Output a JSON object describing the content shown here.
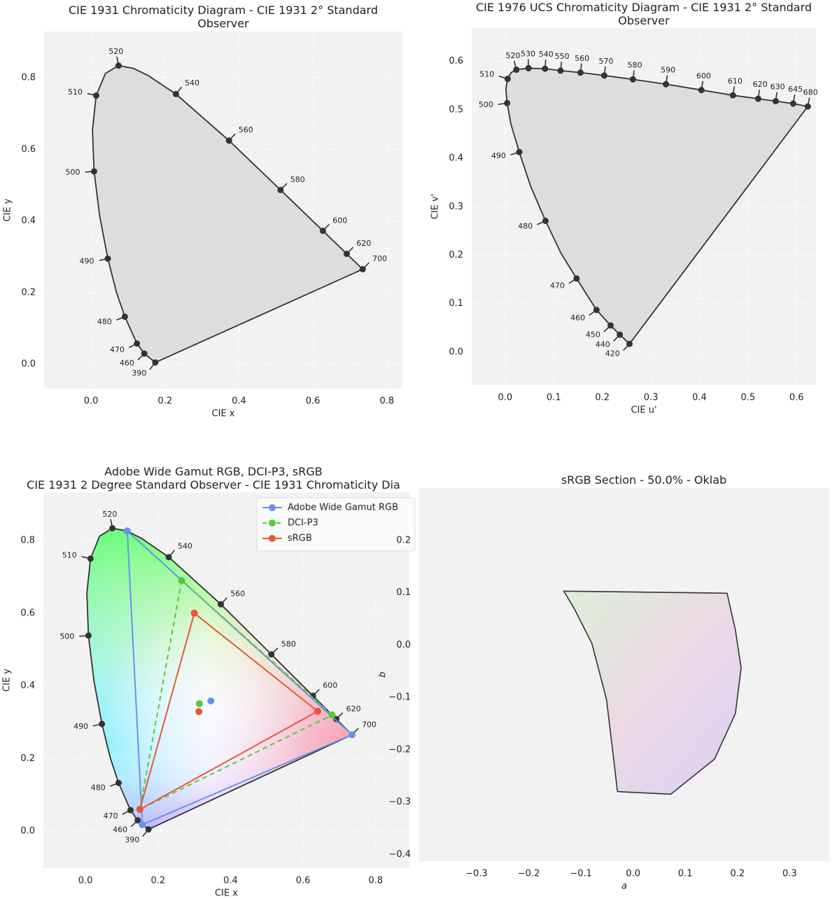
{
  "chart_data": [
    {
      "type": "chromaticity",
      "title": "CIE 1931 Chromaticity Diagram - CIE 1931 2° Standard Observer",
      "xlabel": "CIE x",
      "ylabel": "CIE y",
      "xlim": [
        -0.127,
        0.842
      ],
      "ylim": [
        -0.068,
        0.929
      ],
      "xticks": [
        {
          "value": 0,
          "label": "0.0"
        },
        0.2,
        0.4,
        0.6,
        0.8
      ],
      "yticks": [
        {
          "value": 0,
          "label": "0.0"
        },
        0.2,
        0.4,
        0.6,
        0.8
      ],
      "grid": true,
      "fill": "#d9d9d9",
      "color": "#333333",
      "locus": {
        "x": [
          0.1738,
          0.144,
          0.1241,
          0.0913,
          0.0687,
          0.0454,
          0.0235,
          0.0082,
          0.0039,
          0.0139,
          0.0389,
          0.0743,
          0.1142,
          0.1547,
          0.2296,
          0.3731,
          0.5125,
          0.627,
          0.6915,
          0.7347
        ],
        "y": [
          0.0049,
          0.0297,
          0.0578,
          0.1327,
          0.2007,
          0.295,
          0.4127,
          0.5384,
          0.6548,
          0.7502,
          0.812,
          0.8338,
          0.8262,
          0.8059,
          0.7543,
          0.6245,
          0.4866,
          0.3725,
          0.3083,
          0.2653
        ],
        "labels": [
          "390",
          "460",
          "470",
          "480",
          null,
          "490",
          null,
          "500",
          null,
          "510",
          null,
          "520",
          null,
          null,
          "540",
          "560",
          "580",
          "600",
          "620",
          "700"
        ]
      }
    },
    {
      "type": "chromaticity",
      "title": "CIE 1976 UCS Chromaticity Diagram - CIE 1931 2° Standard Observer",
      "xlabel": "CIE u'",
      "ylabel": "CIE v'",
      "xlim": [
        -0.069,
        0.64
      ],
      "ylim": [
        -0.068,
        0.669
      ],
      "xticks": [
        {
          "value": 0,
          "label": "0.0"
        },
        0.1,
        0.2,
        0.3,
        0.4,
        0.5,
        0.6
      ],
      "yticks": [
        {
          "value": 0,
          "label": "0.0"
        },
        0.1,
        0.2,
        0.3,
        0.4,
        0.5,
        0.6
      ],
      "grid": true,
      "fill": "#d9d9d9",
      "color": "#333333",
      "locus": {
        "x": [
          0.256,
          0.236,
          0.217,
          0.188,
          0.147,
          0.1147,
          0.083,
          0.0521,
          0.029,
          0.0119,
          0.004,
          0.0014,
          0.005,
          0.0123,
          0.023,
          0.048,
          0.082,
          0.114,
          0.155,
          0.204,
          0.263,
          0.331,
          0.404,
          0.469,
          0.521,
          0.557,
          0.593,
          0.623
        ],
        "y": [
          0.017,
          0.036,
          0.055,
          0.087,
          0.152,
          0.2044,
          0.271,
          0.343,
          0.413,
          0.47,
          0.514,
          0.543,
          0.564,
          0.577,
          0.583,
          0.586,
          0.585,
          0.581,
          0.577,
          0.571,
          0.563,
          0.553,
          0.541,
          0.53,
          0.523,
          0.518,
          0.513,
          0.507
        ],
        "labels": [
          "420",
          "440",
          "450",
          "460",
          "470",
          null,
          "480",
          null,
          "490",
          null,
          "500",
          null,
          "510",
          null,
          "520",
          "530",
          "540",
          "550",
          "560",
          "570",
          "580",
          "590",
          "600",
          "610",
          "620",
          "630",
          "645",
          "680"
        ]
      }
    },
    {
      "type": "gamut",
      "title": "Adobe Wide Gamut RGB, DCI-P3, sRGB\nCIE 1931 2 Degree Standard Observer - CIE 1931 Chromaticity Dia",
      "xlabel": "CIE x",
      "ylabel": "CIE y",
      "xlim": [
        -0.116,
        0.893
      ],
      "ylim": [
        -0.102,
        0.933
      ],
      "xticks": [
        {
          "value": 0,
          "label": "0.0"
        },
        0.2,
        0.4,
        0.6,
        0.8
      ],
      "yticks": [
        {
          "value": 0,
          "label": "0.0"
        },
        0.2,
        0.4,
        0.6,
        0.8
      ],
      "grid": true,
      "fill": "spectral",
      "color": "#333333",
      "legend": "upper right",
      "locus": {
        "x": [
          0.1738,
          0.144,
          0.1241,
          0.0913,
          0.0687,
          0.0454,
          0.0235,
          0.0082,
          0.0039,
          0.0139,
          0.0389,
          0.0743,
          0.1142,
          0.1547,
          0.2296,
          0.3731,
          0.5125,
          0.627,
          0.6915,
          0.7347
        ],
        "y": [
          0.0049,
          0.0297,
          0.0578,
          0.1327,
          0.2007,
          0.295,
          0.4127,
          0.5384,
          0.6548,
          0.7502,
          0.812,
          0.8338,
          0.8262,
          0.8059,
          0.7543,
          0.6245,
          0.4866,
          0.3725,
          0.3083,
          0.2653
        ],
        "labels": [
          "390",
          "460",
          "470",
          "480",
          null,
          "490",
          null,
          "500",
          null,
          "510",
          null,
          "520",
          null,
          null,
          "540",
          "560",
          "580",
          "600",
          "620",
          "700"
        ]
      },
      "series": [
        {
          "name": "Adobe Wide Gamut RGB",
          "color": "#6495ed",
          "dash": false,
          "x": [
            0.7347,
            0.1152,
            0.1566
          ],
          "values": [
            0.2653,
            0.8264,
            0.0177
          ],
          "whitepoint_x": 0.3457,
          "whitepoint_y": 0.3585
        },
        {
          "name": "DCI-P3",
          "color": "#5ac83c",
          "dash": true,
          "x": [
            0.68,
            0.265,
            0.15
          ],
          "values": [
            0.32,
            0.69,
            0.06
          ],
          "whitepoint_x": 0.314,
          "whitepoint_y": 0.351
        },
        {
          "name": "sRGB",
          "color": "#e8573d",
          "dash": false,
          "x": [
            0.64,
            0.3,
            0.15
          ],
          "values": [
            0.33,
            0.6,
            0.06
          ],
          "whitepoint_x": 0.3127,
          "whitepoint_y": 0.329
        }
      ]
    },
    {
      "type": "section",
      "title": "sRGB Section - 50.0% - Oklab",
      "xlabel": "a",
      "ylabel": "b",
      "xlim": [
        -0.41,
        0.376
      ],
      "ylim": [
        -0.413,
        0.3
      ],
      "xticks": [
        {
          "value": -0.3,
          "label": "−0.3"
        },
        {
          "value": -0.2,
          "label": "−0.2"
        },
        {
          "value": -0.1,
          "label": "−0.1"
        },
        {
          "value": 0,
          "label": "0.0"
        },
        0.1,
        0.2,
        0.3
      ],
      "yticks": [
        {
          "value": -0.4,
          "label": "−0.4"
        },
        {
          "value": -0.3,
          "label": "−0.3"
        },
        {
          "value": -0.2,
          "label": "−0.2"
        },
        {
          "value": -0.1,
          "label": "−0.1"
        },
        {
          "value": 0,
          "label": "0.0"
        },
        0.1,
        0.2
      ],
      "grid": false,
      "color": "#333333",
      "boundary": {
        "a": [
          -0.133,
          0.18,
          0.196,
          0.207,
          0.196,
          0.156,
          0.072,
          -0.03,
          -0.038,
          -0.051,
          -0.079,
          -0.113
        ],
        "b": [
          0.103,
          0.099,
          0.029,
          -0.044,
          -0.131,
          -0.218,
          -0.285,
          -0.28,
          -0.212,
          -0.104,
          0.003,
          0.07
        ]
      }
    }
  ]
}
